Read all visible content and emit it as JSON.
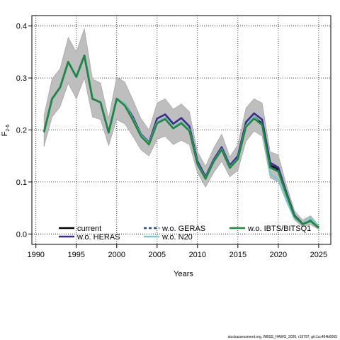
{
  "chart_data": {
    "type": "line",
    "xlabel": "Years",
    "ylabel": "F",
    "ylabel_subscript": "2-5",
    "xlim": [
      1989.5,
      2026.5
    ],
    "ylim": [
      -0.02,
      0.42
    ],
    "xticks": [
      1990,
      1995,
      2000,
      2005,
      2010,
      2015,
      2020,
      2025
    ],
    "yticks": [
      0.0,
      0.1,
      0.2,
      0.3,
      0.4
    ],
    "ytick_labels": [
      "0.0",
      "0.1",
      "0.2",
      "0.3",
      "0.4"
    ],
    "grid": true,
    "legend_position": "bottom",
    "band": {
      "x": [
        1991,
        1992,
        1993,
        1994,
        1995,
        1996,
        1997,
        1998,
        1999,
        2000,
        2001,
        2002,
        2003,
        2004,
        2005,
        2006,
        2007,
        2008,
        2009,
        2010,
        2011,
        2012,
        2013,
        2014,
        2015,
        2016,
        2017,
        2018,
        2019,
        2020,
        2021,
        2022,
        2023,
        2024,
        2025
      ],
      "lower": [
        0.168,
        0.225,
        0.245,
        0.29,
        0.26,
        0.3,
        0.225,
        0.22,
        0.17,
        0.22,
        0.212,
        0.188,
        0.162,
        0.15,
        0.182,
        0.188,
        0.172,
        0.18,
        0.172,
        0.118,
        0.09,
        0.118,
        0.14,
        0.11,
        0.122,
        0.178,
        0.198,
        0.188,
        0.108,
        0.1,
        0.065,
        0.027,
        0.014,
        0.018,
        0.009
      ],
      "upper": [
        0.228,
        0.298,
        0.318,
        0.378,
        0.35,
        0.395,
        0.298,
        0.29,
        0.222,
        0.302,
        0.292,
        0.258,
        0.222,
        0.2,
        0.252,
        0.26,
        0.24,
        0.25,
        0.235,
        0.158,
        0.13,
        0.165,
        0.192,
        0.148,
        0.172,
        0.242,
        0.26,
        0.252,
        0.158,
        0.152,
        0.095,
        0.045,
        0.027,
        0.035,
        0.017
      ]
    },
    "x": [
      1991,
      1992,
      1993,
      1994,
      1995,
      1996,
      1997,
      1998,
      1999,
      2000,
      2001,
      2002,
      2003,
      2004,
      2005,
      2006,
      2007,
      2008,
      2009,
      2010,
      2011,
      2012,
      2013,
      2014,
      2015,
      2016,
      2017,
      2018,
      2019,
      2020,
      2021,
      2022,
      2023,
      2024,
      2025
    ],
    "series": [
      {
        "name": "current",
        "color": "#000000",
        "dash": "solid",
        "values": [
          0.196,
          0.26,
          0.282,
          0.331,
          0.302,
          0.343,
          0.26,
          0.253,
          0.195,
          0.26,
          0.25,
          0.221,
          0.19,
          0.174,
          0.215,
          0.223,
          0.205,
          0.215,
          0.2,
          0.135,
          0.107,
          0.14,
          0.163,
          0.128,
          0.145,
          0.208,
          0.225,
          0.212,
          0.132,
          0.124,
          0.078,
          0.035,
          0.019,
          0.025,
          0.012
        ]
      },
      {
        "name": "w.o. HERAS",
        "color": "#3b2a8f",
        "dash": "solid",
        "values": [
          0.196,
          0.26,
          0.282,
          0.331,
          0.302,
          0.343,
          0.26,
          0.253,
          0.195,
          0.26,
          0.25,
          0.225,
          0.192,
          0.176,
          0.222,
          0.23,
          0.212,
          0.223,
          0.207,
          0.14,
          0.11,
          0.143,
          0.167,
          0.132,
          0.15,
          0.215,
          0.232,
          0.22,
          0.137,
          0.128,
          0.08,
          0.036,
          0.02,
          0.026,
          0.013
        ]
      },
      {
        "name": "w.o. GERAS",
        "color": "#1f4e8a",
        "dash": "dashed",
        "values": [
          0.196,
          0.26,
          0.282,
          0.331,
          0.302,
          0.343,
          0.26,
          0.253,
          0.195,
          0.26,
          0.25,
          0.221,
          0.19,
          0.174,
          0.215,
          0.223,
          0.205,
          0.215,
          0.2,
          0.135,
          0.107,
          0.14,
          0.163,
          0.128,
          0.145,
          0.208,
          0.225,
          0.212,
          0.13,
          0.122,
          0.077,
          0.035,
          0.019,
          0.025,
          0.012
        ]
      },
      {
        "name": "w.o. N20",
        "color": "#7fc8c8",
        "dash": "solid",
        "values": [
          0.196,
          0.26,
          0.282,
          0.331,
          0.302,
          0.343,
          0.26,
          0.253,
          0.195,
          0.26,
          0.25,
          0.221,
          0.19,
          0.174,
          0.215,
          0.223,
          0.205,
          0.215,
          0.2,
          0.135,
          0.107,
          0.14,
          0.163,
          0.128,
          0.145,
          0.208,
          0.225,
          0.208,
          0.115,
          0.105,
          0.065,
          0.03,
          0.02,
          0.03,
          0.016
        ]
      },
      {
        "name": "w.o. IBTS/BITSQ1",
        "color": "#1a8a3e",
        "dash": "solid",
        "values": [
          0.196,
          0.26,
          0.282,
          0.331,
          0.302,
          0.343,
          0.26,
          0.253,
          0.195,
          0.26,
          0.247,
          0.219,
          0.188,
          0.172,
          0.213,
          0.221,
          0.203,
          0.213,
          0.198,
          0.134,
          0.106,
          0.139,
          0.162,
          0.127,
          0.144,
          0.206,
          0.222,
          0.21,
          0.128,
          0.12,
          0.076,
          0.034,
          0.019,
          0.025,
          0.012
        ]
      }
    ],
    "credit": "stockassessment.org, WBSS_HAWG_2026, r19797, git:1cc464b6065"
  }
}
